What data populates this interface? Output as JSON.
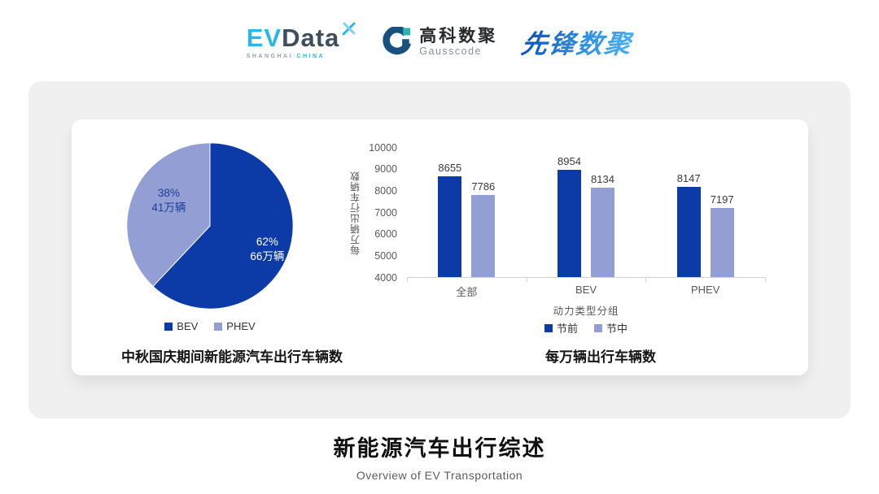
{
  "header": {
    "evdata": {
      "ev": "EV",
      "data": "Data",
      "sub_left": "SHANGHAI",
      "sub_right": "CHINA"
    },
    "gausscode": {
      "cn": "高科数聚",
      "en": "Gausscode"
    },
    "xianfeng": {
      "text": "先锋数聚"
    }
  },
  "colors": {
    "series_dark_blue": "#0C3AA6",
    "series_light_purple": "#929ED4",
    "axis_line": "#d5d5d5",
    "axis_text": "#595959"
  },
  "chart_data": [
    {
      "type": "pie",
      "title": "中秋国庆期间新能源汽车出行车辆数",
      "start_angle_deg": 0,
      "direction": "clockwise",
      "slices": [
        {
          "label": "BEV",
          "percent": 62,
          "value_label": "62%",
          "count_label": "66万辆",
          "color": "#0C3AA6"
        },
        {
          "label": "PHEV",
          "percent": 38,
          "value_label": "38%",
          "count_label": "41万辆",
          "color": "#929ED4"
        }
      ],
      "legend_position": "bottom"
    },
    {
      "type": "bar",
      "title": "每万辆出行车辆数",
      "categories": [
        "全部",
        "BEV",
        "PHEV"
      ],
      "series": [
        {
          "name": "节前",
          "color": "#0C3AA6",
          "values": [
            8655,
            8954,
            8147
          ]
        },
        {
          "name": "节中",
          "color": "#929ED4",
          "values": [
            7786,
            8134,
            7197
          ]
        }
      ],
      "xlabel": "动力类型分组",
      "ylabel": "每万辆出行车辆数",
      "ylim": [
        4000,
        10000
      ],
      "ytick_step": 1000,
      "grid": false,
      "legend_position": "bottom"
    }
  ],
  "footer": {
    "title": "新能源汽车出行综述",
    "subtitle": "Overview of EV Transportation"
  }
}
